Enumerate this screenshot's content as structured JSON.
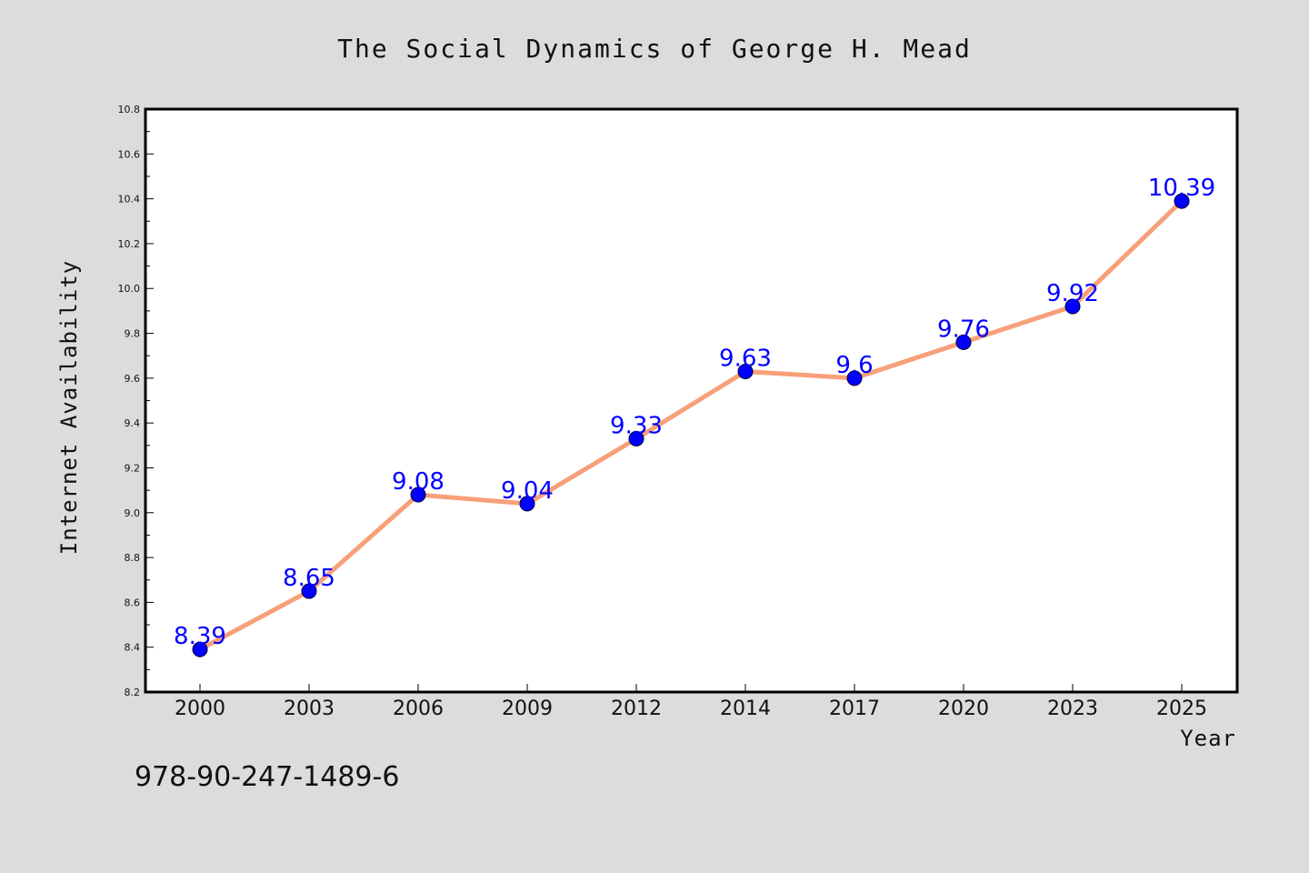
{
  "chart_data": {
    "type": "line",
    "title": "The Social Dynamics of George H. Mead",
    "xlabel": "Year",
    "ylabel": "Internet Availability",
    "categories": [
      "2000",
      "2003",
      "2006",
      "2009",
      "2012",
      "2014",
      "2017",
      "2020",
      "2023",
      "2025"
    ],
    "series": [
      {
        "values": [
          8.39,
          8.65,
          9.08,
          9.04,
          9.33,
          9.63,
          9.6,
          9.76,
          9.92,
          10.39
        ],
        "data_labels": [
          "8.39",
          "8.65",
          "9.08",
          "9.04",
          "9.33",
          "9.63",
          "9.6",
          "9.76",
          "9.92",
          "10.39"
        ],
        "line_color": "#f7a07a",
        "marker_color": "#0000ff"
      }
    ],
    "ylim": [
      8.2,
      10.8
    ],
    "yticks": [
      "8.2",
      "8.4",
      "8.6",
      "8.8",
      "9.0",
      "9.2",
      "9.4",
      "9.6",
      "9.8",
      "10.0",
      "10.2",
      "10.4",
      "10.6",
      "10.8"
    ],
    "grid": false,
    "legend": "none",
    "background_color": "#dcdcdc",
    "plot_background_color": "#ffffff"
  },
  "footer": {
    "text": "978-90-247-1489-6"
  }
}
